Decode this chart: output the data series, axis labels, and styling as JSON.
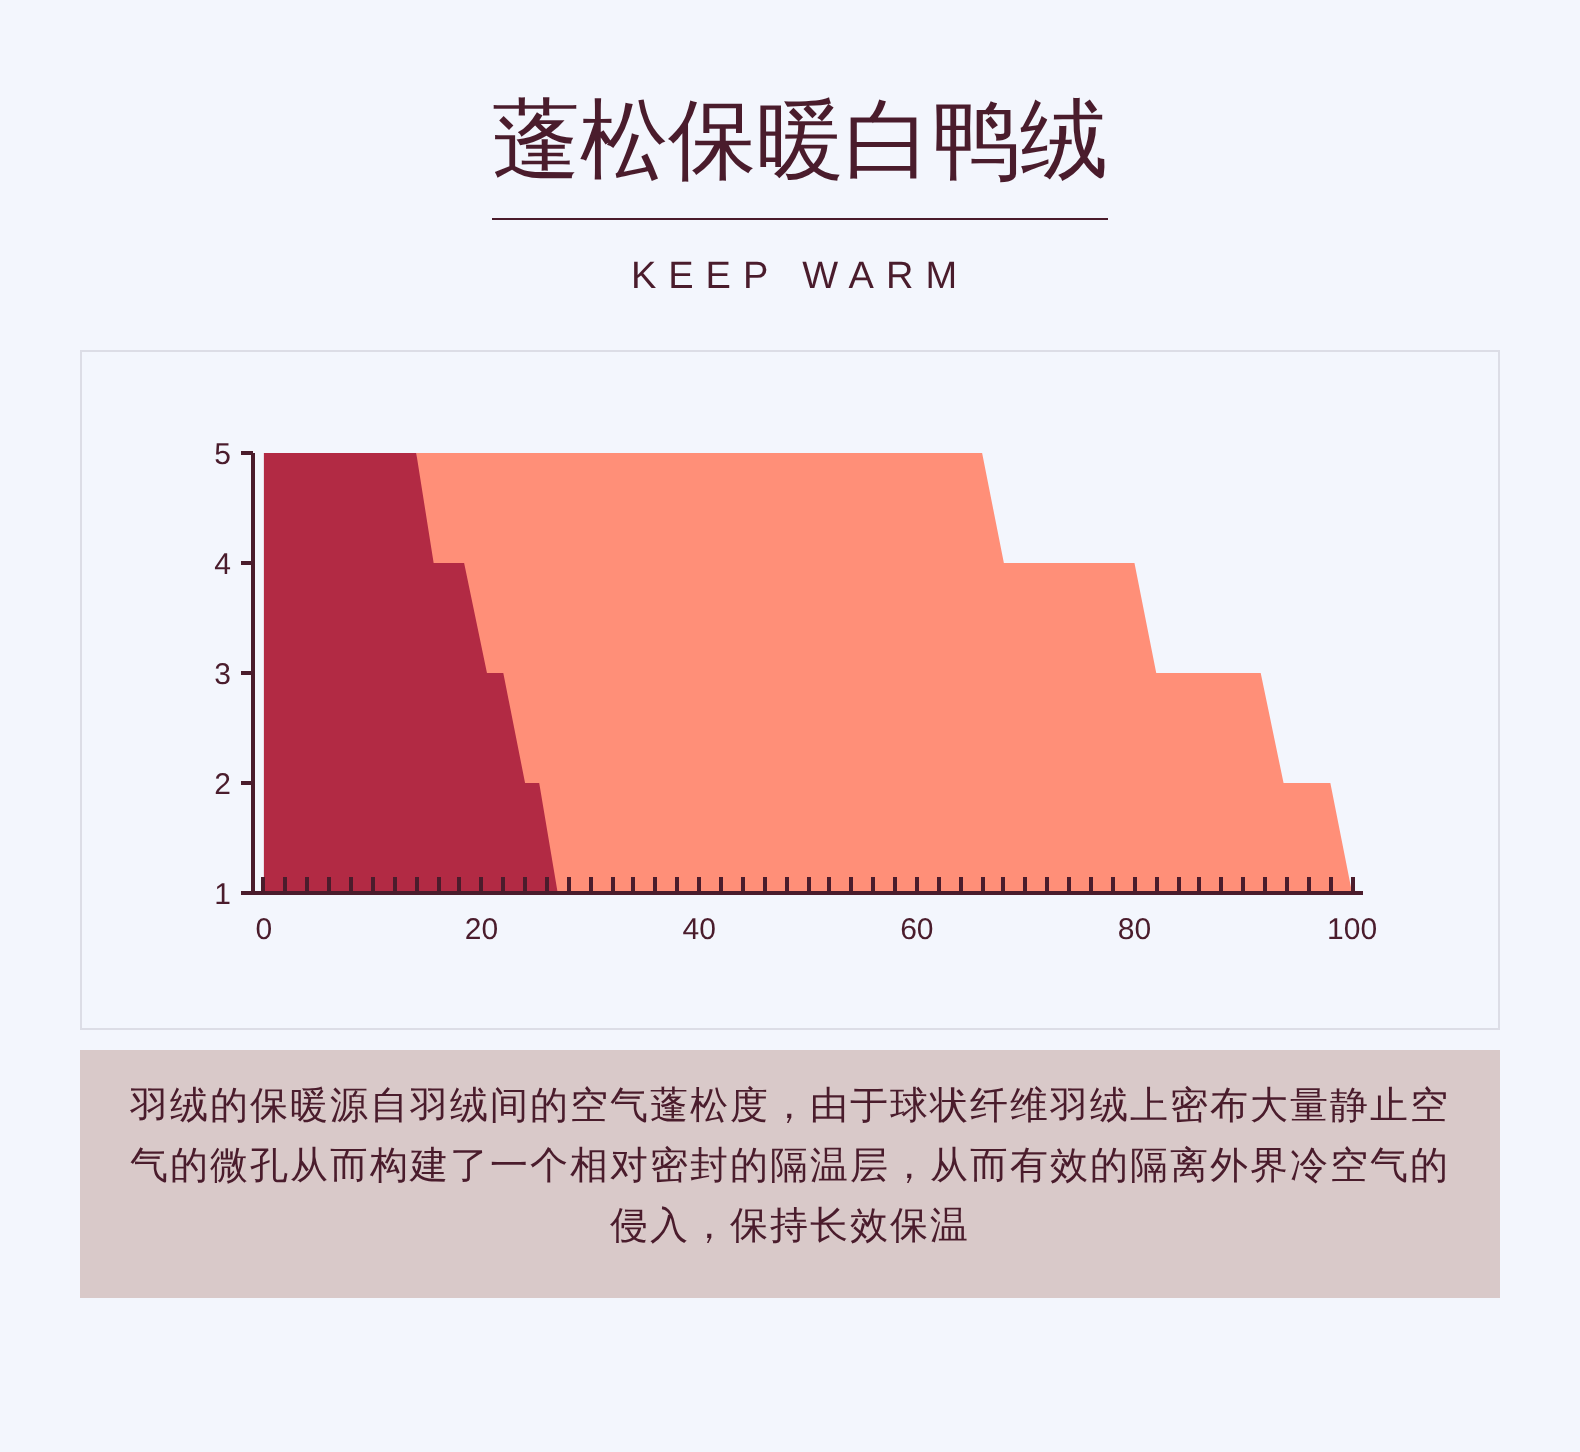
{
  "chart_data": {
    "type": "area",
    "title": "蓬松保暖白鸭绒",
    "subtitle": "KEEP WARM",
    "xlim": [
      -1,
      101
    ],
    "xticks": [
      0,
      20,
      40,
      60,
      80,
      100
    ],
    "ylim": [
      1,
      5
    ],
    "yticks": [
      1,
      2,
      3,
      4,
      5
    ],
    "grid": false,
    "series": [
      {
        "color": "#b22a44",
        "x": [
          0,
          14,
          15.6,
          18.4,
          20.5,
          22,
          24,
          25.3,
          27
        ],
        "values": [
          5,
          5,
          4,
          4,
          3,
          3,
          2,
          2,
          1
        ]
      },
      {
        "color": "#ff8f78",
        "x": [
          14,
          66,
          68,
          80,
          82,
          91.6,
          93.7,
          98,
          100
        ],
        "values": [
          5,
          5,
          4,
          4,
          3,
          3,
          2,
          2,
          1
        ]
      }
    ],
    "annotations": [
      "羽绒的保暖源自羽绒间的空气蓬松度，由于球状纤维羽绒上密布大量静止空气的微孔从而构建了一个相对密封的隔温层，从而有效的隔离外界冷空气的侵入，保持长效保温"
    ]
  }
}
